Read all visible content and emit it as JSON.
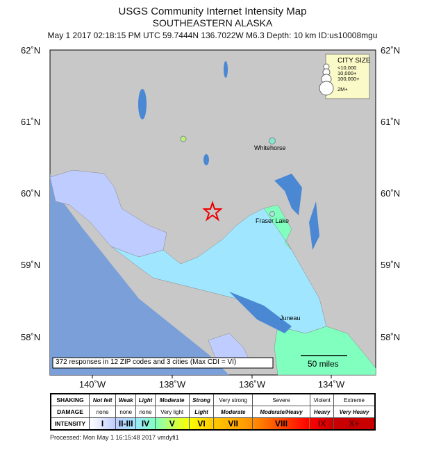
{
  "title": "USGS Community Internet Intensity Map",
  "region": "SOUTHEASTERN ALASKA",
  "event_line": "May 1 2017 02:18:15 PM UTC 59.7444N 136.7022W M6.3 Depth: 10 km ID:us10008mgu",
  "lat_labels": [
    "62˚N",
    "61˚N",
    "60˚N",
    "59˚N",
    "58˚N"
  ],
  "lon_labels": [
    "140˚W",
    "138˚W",
    "136˚W",
    "134˚W"
  ],
  "cities": [
    "Whitehorse",
    "Fraser Lake",
    "Juneau"
  ],
  "city_size": {
    "title": "CITY SIZE",
    "sizes": [
      "<10,000",
      "10,000+",
      "100,000+",
      "2M+"
    ]
  },
  "responses": "372 responses in 12 ZIP codes and 3 cities (Max CDI = VI)",
  "scale_label": "50 miles",
  "legend": {
    "rows": [
      "SHAKING",
      "DAMAGE",
      "INTENSITY"
    ],
    "shaking": [
      "Not felt",
      "Weak",
      "Light",
      "Moderate",
      "Strong",
      "Very strong",
      "Severe",
      "Violent",
      "Extreme"
    ],
    "damage": [
      "none",
      "none",
      "none",
      "Very light",
      "Light",
      "Moderate",
      "Moderate/Heavy",
      "Heavy",
      "Very Heavy"
    ],
    "intensity": [
      "I",
      "II-III",
      "IV",
      "V",
      "VI",
      "VII",
      "VIII",
      "IX",
      "X+"
    ],
    "colors": [
      "#ffffff",
      "#bfccff",
      "#a0e6ff",
      "#80ffbf",
      "#ffff00",
      "#ffc800",
      "#ff9100",
      "#ff0000",
      "#c80000"
    ]
  },
  "footer": "Processed: Mon May  1 16:15:48 2017 vmdyfi1"
}
